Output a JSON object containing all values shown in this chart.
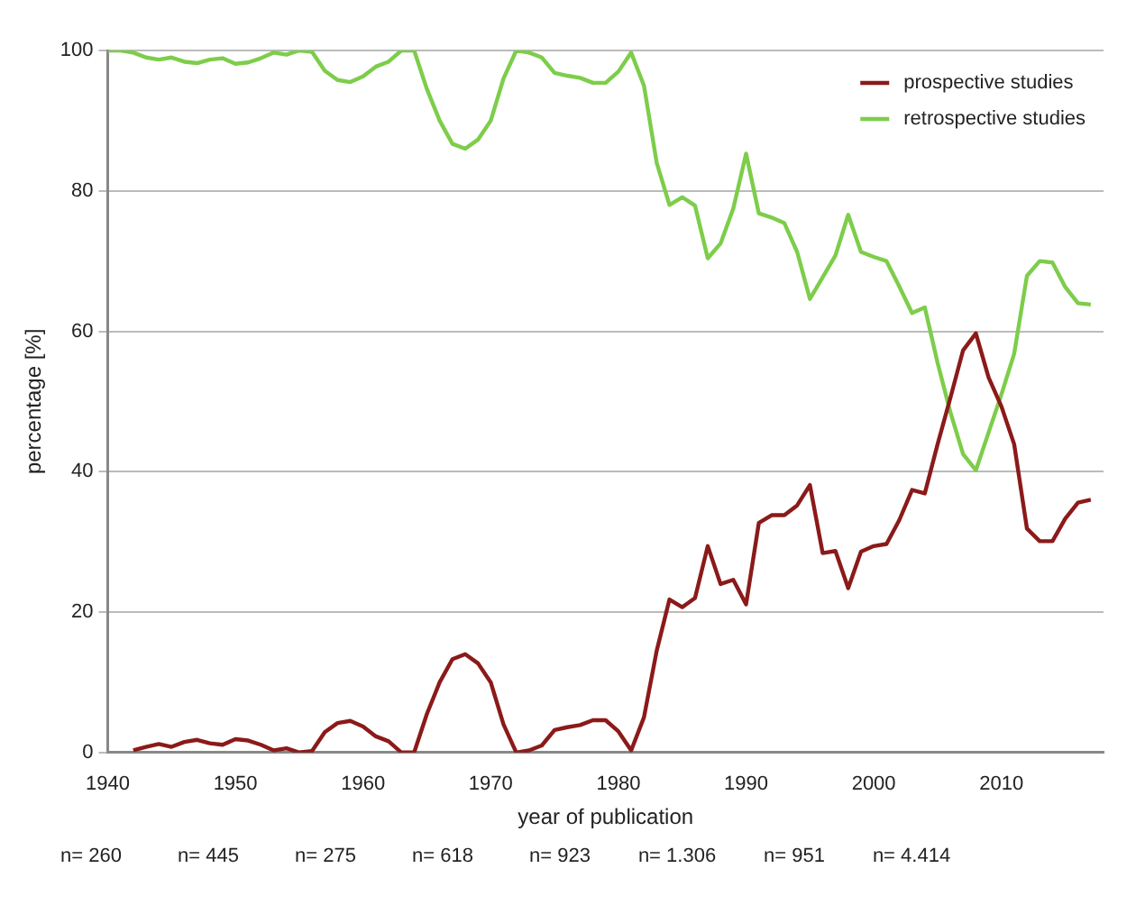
{
  "chart_data": {
    "type": "line",
    "xlabel": "year of publication",
    "ylabel": "percentage [%]",
    "x": [
      1940,
      1941,
      1942,
      1943,
      1944,
      1945,
      1946,
      1947,
      1948,
      1949,
      1950,
      1951,
      1952,
      1953,
      1954,
      1955,
      1956,
      1957,
      1958,
      1959,
      1960,
      1961,
      1962,
      1963,
      1964,
      1965,
      1966,
      1967,
      1968,
      1969,
      1970,
      1971,
      1972,
      1973,
      1974,
      1975,
      1976,
      1977,
      1978,
      1979,
      1980,
      1981,
      1982,
      1983,
      1984,
      1985,
      1986,
      1987,
      1988,
      1989,
      1990,
      1991,
      1992,
      1993,
      1994,
      1995,
      1996,
      1997,
      1998,
      1999,
      2000,
      2001,
      2002,
      2003,
      2004,
      2005,
      2006,
      2007,
      2008,
      2009,
      2010,
      2011,
      2012,
      2013,
      2014,
      2015,
      2016,
      2017
    ],
    "series": [
      {
        "name": "prospective studies",
        "color": "#8b1a1a",
        "values": [
          null,
          null,
          0.3,
          0.8,
          1.2,
          0.8,
          1.5,
          1.8,
          1.3,
          1.1,
          1.9,
          1.7,
          1.1,
          0.3,
          0.6,
          0,
          0.2,
          2.9,
          4.2,
          4.5,
          3.7,
          2.3,
          1.6,
          0,
          0,
          5.5,
          10,
          13.3,
          14,
          12.7,
          10,
          4,
          0,
          0.3,
          1,
          3.2,
          3.6,
          3.9,
          4.6,
          4.6,
          3,
          0.3,
          5,
          14.5,
          21.8,
          20.7,
          22,
          29.4,
          24,
          24.6,
          21.1,
          32.7,
          33.8,
          33.8,
          35.2,
          38.1,
          28.4,
          28.7,
          23.4,
          28.6,
          29.4,
          29.7,
          33.1,
          37.4,
          36.9,
          43.9,
          50.5,
          57.3,
          59.7,
          53.4,
          49.3,
          43.9,
          31.9,
          30.1,
          30.1,
          33.3,
          35.6,
          36
        ]
      },
      {
        "name": "retrospective studies",
        "color": "#7dcd4a",
        "values": [
          100,
          100,
          99.7,
          99,
          98.7,
          99,
          98.4,
          98.2,
          98.7,
          98.9,
          98.1,
          98.3,
          98.9,
          99.7,
          99.4,
          100,
          99.8,
          97.1,
          95.8,
          95.5,
          96.3,
          97.7,
          98.4,
          100,
          100,
          94.5,
          90,
          86.7,
          86,
          87.3,
          90,
          96,
          100,
          99.7,
          99,
          96.8,
          96.4,
          96.1,
          95.4,
          95.4,
          97,
          99.7,
          95,
          84,
          78,
          79.1,
          77.9,
          70.4,
          72.5,
          77.5,
          85.3,
          76.8,
          76.2,
          75.4,
          71.3,
          64.6,
          67.7,
          70.8,
          76.6,
          71.3,
          70.6,
          70,
          66.4,
          62.6,
          63.4,
          55.5,
          48.5,
          42.5,
          40.2,
          45.6,
          51,
          56.8,
          67.9,
          70,
          69.8,
          66.3,
          64,
          63.8
        ]
      }
    ],
    "xlim": [
      1940,
      2018
    ],
    "xticks": [
      1940,
      1950,
      1960,
      1970,
      1980,
      1990,
      2000,
      2010
    ],
    "ylim": [
      0,
      100
    ],
    "yticks": [
      0,
      20,
      40,
      60,
      80,
      100
    ],
    "grid": "y",
    "legend": "top right",
    "marker": "none",
    "line_style": "solid",
    "annotations": [
      "n= 260",
      "n= 445",
      "n= 275",
      "n= 618",
      "n= 923",
      "n= 1.306",
      "n= 951",
      "n= 4.414"
    ]
  }
}
